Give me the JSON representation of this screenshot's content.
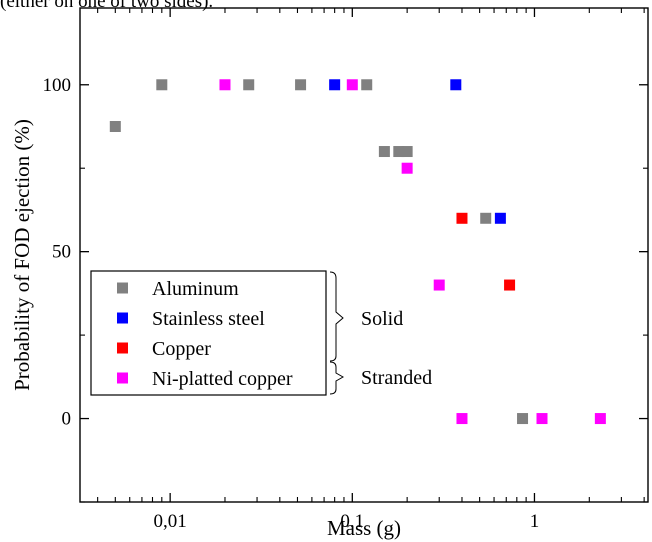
{
  "caption": "(either on one of two sides).",
  "chart_data": {
    "type": "scatter",
    "title": "",
    "xlabel": "Mass (g)",
    "ylabel": "Probability of FOD ejection (%)",
    "x_scale": "log",
    "xlim": [
      0.0032,
      4.2
    ],
    "ylim": [
      -25,
      123
    ],
    "x_ticks": [
      {
        "value": 0.01,
        "label": "0,01"
      },
      {
        "value": 0.1,
        "label": "0,1"
      },
      {
        "value": 1,
        "label": "1"
      }
    ],
    "y_ticks": [
      {
        "value": 0,
        "label": "0"
      },
      {
        "value": 50,
        "label": "50"
      },
      {
        "value": 100,
        "label": "100"
      }
    ],
    "grid": false,
    "legend_position": "bottom-left",
    "series": [
      {
        "name": "Aluminum",
        "color": "#808080",
        "points": [
          [
            0.005,
            87.5
          ],
          [
            0.009,
            100
          ],
          [
            0.027,
            100
          ],
          [
            0.052,
            100
          ],
          [
            0.12,
            100
          ],
          [
            0.15,
            80
          ],
          [
            0.18,
            80
          ],
          [
            0.2,
            80
          ],
          [
            0.54,
            60
          ],
          [
            0.86,
            0
          ]
        ]
      },
      {
        "name": "Stainless steel",
        "color": "#0000ff",
        "points": [
          [
            0.08,
            100
          ],
          [
            0.37,
            100
          ],
          [
            0.65,
            60
          ]
        ]
      },
      {
        "name": "Copper",
        "color": "#ff0000",
        "points": [
          [
            0.4,
            60
          ],
          [
            0.73,
            40
          ]
        ]
      },
      {
        "name": "Ni-platted copper",
        "color": "#ff00ff",
        "points": [
          [
            0.02,
            100
          ],
          [
            0.1,
            100
          ],
          [
            0.2,
            75
          ],
          [
            0.3,
            40
          ],
          [
            0.4,
            0
          ],
          [
            1.1,
            0
          ],
          [
            2.3,
            0
          ]
        ]
      }
    ],
    "legend_groups": [
      {
        "label": "Solid"
      },
      {
        "label": "Stranded"
      }
    ]
  }
}
